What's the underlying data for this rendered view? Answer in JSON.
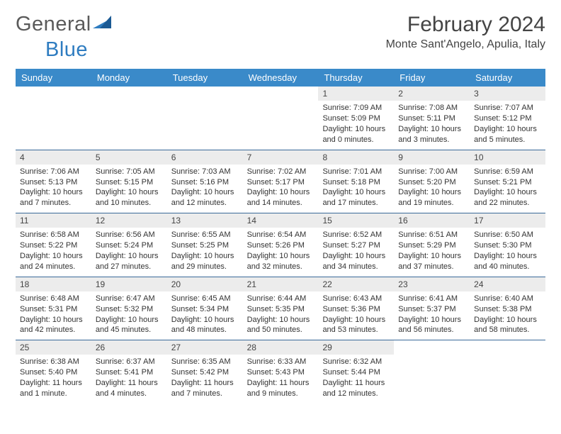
{
  "brand": {
    "text1": "General",
    "text2": "Blue"
  },
  "title": "February 2024",
  "location": "Monte Sant'Angelo, Apulia, Italy",
  "colors": {
    "header_bg": "#3a8ac9",
    "header_text": "#ffffff",
    "week_border": "#3a6a99",
    "daynum_bg": "#ececec",
    "text": "#333333",
    "brand_gray": "#5a5a5a",
    "brand_blue": "#2e7cc0"
  },
  "weekdays": [
    "Sunday",
    "Monday",
    "Tuesday",
    "Wednesday",
    "Thursday",
    "Friday",
    "Saturday"
  ],
  "weeks": [
    [
      null,
      null,
      null,
      null,
      {
        "n": "1",
        "sunrise": "Sunrise: 7:09 AM",
        "sunset": "Sunset: 5:09 PM",
        "day1": "Daylight: 10 hours",
        "day2": "and 0 minutes."
      },
      {
        "n": "2",
        "sunrise": "Sunrise: 7:08 AM",
        "sunset": "Sunset: 5:11 PM",
        "day1": "Daylight: 10 hours",
        "day2": "and 3 minutes."
      },
      {
        "n": "3",
        "sunrise": "Sunrise: 7:07 AM",
        "sunset": "Sunset: 5:12 PM",
        "day1": "Daylight: 10 hours",
        "day2": "and 5 minutes."
      }
    ],
    [
      {
        "n": "4",
        "sunrise": "Sunrise: 7:06 AM",
        "sunset": "Sunset: 5:13 PM",
        "day1": "Daylight: 10 hours",
        "day2": "and 7 minutes."
      },
      {
        "n": "5",
        "sunrise": "Sunrise: 7:05 AM",
        "sunset": "Sunset: 5:15 PM",
        "day1": "Daylight: 10 hours",
        "day2": "and 10 minutes."
      },
      {
        "n": "6",
        "sunrise": "Sunrise: 7:03 AM",
        "sunset": "Sunset: 5:16 PM",
        "day1": "Daylight: 10 hours",
        "day2": "and 12 minutes."
      },
      {
        "n": "7",
        "sunrise": "Sunrise: 7:02 AM",
        "sunset": "Sunset: 5:17 PM",
        "day1": "Daylight: 10 hours",
        "day2": "and 14 minutes."
      },
      {
        "n": "8",
        "sunrise": "Sunrise: 7:01 AM",
        "sunset": "Sunset: 5:18 PM",
        "day1": "Daylight: 10 hours",
        "day2": "and 17 minutes."
      },
      {
        "n": "9",
        "sunrise": "Sunrise: 7:00 AM",
        "sunset": "Sunset: 5:20 PM",
        "day1": "Daylight: 10 hours",
        "day2": "and 19 minutes."
      },
      {
        "n": "10",
        "sunrise": "Sunrise: 6:59 AM",
        "sunset": "Sunset: 5:21 PM",
        "day1": "Daylight: 10 hours",
        "day2": "and 22 minutes."
      }
    ],
    [
      {
        "n": "11",
        "sunrise": "Sunrise: 6:58 AM",
        "sunset": "Sunset: 5:22 PM",
        "day1": "Daylight: 10 hours",
        "day2": "and 24 minutes."
      },
      {
        "n": "12",
        "sunrise": "Sunrise: 6:56 AM",
        "sunset": "Sunset: 5:24 PM",
        "day1": "Daylight: 10 hours",
        "day2": "and 27 minutes."
      },
      {
        "n": "13",
        "sunrise": "Sunrise: 6:55 AM",
        "sunset": "Sunset: 5:25 PM",
        "day1": "Daylight: 10 hours",
        "day2": "and 29 minutes."
      },
      {
        "n": "14",
        "sunrise": "Sunrise: 6:54 AM",
        "sunset": "Sunset: 5:26 PM",
        "day1": "Daylight: 10 hours",
        "day2": "and 32 minutes."
      },
      {
        "n": "15",
        "sunrise": "Sunrise: 6:52 AM",
        "sunset": "Sunset: 5:27 PM",
        "day1": "Daylight: 10 hours",
        "day2": "and 34 minutes."
      },
      {
        "n": "16",
        "sunrise": "Sunrise: 6:51 AM",
        "sunset": "Sunset: 5:29 PM",
        "day1": "Daylight: 10 hours",
        "day2": "and 37 minutes."
      },
      {
        "n": "17",
        "sunrise": "Sunrise: 6:50 AM",
        "sunset": "Sunset: 5:30 PM",
        "day1": "Daylight: 10 hours",
        "day2": "and 40 minutes."
      }
    ],
    [
      {
        "n": "18",
        "sunrise": "Sunrise: 6:48 AM",
        "sunset": "Sunset: 5:31 PM",
        "day1": "Daylight: 10 hours",
        "day2": "and 42 minutes."
      },
      {
        "n": "19",
        "sunrise": "Sunrise: 6:47 AM",
        "sunset": "Sunset: 5:32 PM",
        "day1": "Daylight: 10 hours",
        "day2": "and 45 minutes."
      },
      {
        "n": "20",
        "sunrise": "Sunrise: 6:45 AM",
        "sunset": "Sunset: 5:34 PM",
        "day1": "Daylight: 10 hours",
        "day2": "and 48 minutes."
      },
      {
        "n": "21",
        "sunrise": "Sunrise: 6:44 AM",
        "sunset": "Sunset: 5:35 PM",
        "day1": "Daylight: 10 hours",
        "day2": "and 50 minutes."
      },
      {
        "n": "22",
        "sunrise": "Sunrise: 6:43 AM",
        "sunset": "Sunset: 5:36 PM",
        "day1": "Daylight: 10 hours",
        "day2": "and 53 minutes."
      },
      {
        "n": "23",
        "sunrise": "Sunrise: 6:41 AM",
        "sunset": "Sunset: 5:37 PM",
        "day1": "Daylight: 10 hours",
        "day2": "and 56 minutes."
      },
      {
        "n": "24",
        "sunrise": "Sunrise: 6:40 AM",
        "sunset": "Sunset: 5:38 PM",
        "day1": "Daylight: 10 hours",
        "day2": "and 58 minutes."
      }
    ],
    [
      {
        "n": "25",
        "sunrise": "Sunrise: 6:38 AM",
        "sunset": "Sunset: 5:40 PM",
        "day1": "Daylight: 11 hours",
        "day2": "and 1 minute."
      },
      {
        "n": "26",
        "sunrise": "Sunrise: 6:37 AM",
        "sunset": "Sunset: 5:41 PM",
        "day1": "Daylight: 11 hours",
        "day2": "and 4 minutes."
      },
      {
        "n": "27",
        "sunrise": "Sunrise: 6:35 AM",
        "sunset": "Sunset: 5:42 PM",
        "day1": "Daylight: 11 hours",
        "day2": "and 7 minutes."
      },
      {
        "n": "28",
        "sunrise": "Sunrise: 6:33 AM",
        "sunset": "Sunset: 5:43 PM",
        "day1": "Daylight: 11 hours",
        "day2": "and 9 minutes."
      },
      {
        "n": "29",
        "sunrise": "Sunrise: 6:32 AM",
        "sunset": "Sunset: 5:44 PM",
        "day1": "Daylight: 11 hours",
        "day2": "and 12 minutes."
      },
      null,
      null
    ]
  ]
}
